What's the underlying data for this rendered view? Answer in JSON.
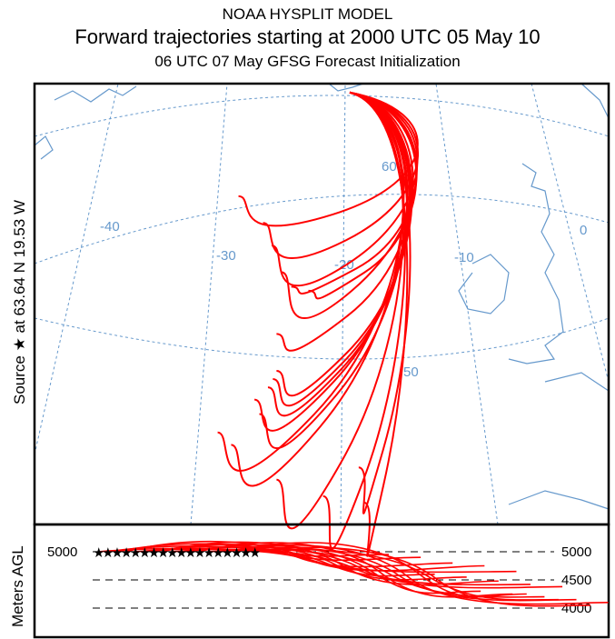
{
  "header": {
    "line1": "NOAA HYSPLIT MODEL",
    "line2": "Forward trajectories starting at 2000 UTC 05 May 10",
    "line3": "06 UTC 07 May    GFSG  Forecast Initialization"
  },
  "source_label": "Source ★ at   63.64 N   19.53 W",
  "vertical_axis_label": "Meters AGL",
  "colors": {
    "trajectory": "#ff0000",
    "graticule": "#6699cc",
    "coast": "#6699cc"
  },
  "chart_data": {
    "type": "line",
    "title": "Forward trajectories starting at 2000 UTC 05 May 10",
    "source": {
      "lat": 63.64,
      "lon": -19.53,
      "height_m": 5000
    },
    "graticule_labels": {
      "lat": [
        "60",
        "50"
      ],
      "lon": [
        "-40",
        "-30",
        "-20",
        "-10",
        "0"
      ]
    },
    "height_ticks_left": [
      "5000"
    ],
    "height_ticks_right": [
      "5000",
      "4500",
      "4000"
    ],
    "height_range_m": [
      3800,
      5500
    ],
    "trajectories": [
      {
        "end_lat": 58.5,
        "end_lon": -28.6,
        "end_height": 4950
      },
      {
        "end_lat": 57.2,
        "end_lon": -26.6,
        "end_height": 4900
      },
      {
        "end_lat": 56.1,
        "end_lon": -25.9,
        "end_height": 4800
      },
      {
        "end_lat": 54.8,
        "end_lon": -25.1,
        "end_height": 4750
      },
      {
        "end_lat": 54.1,
        "end_lon": -24.3,
        "end_height": 4650
      },
      {
        "end_lat": 53.9,
        "end_lon": -22.9,
        "end_height": 4600
      },
      {
        "end_lat": 51.8,
        "end_lon": -25.5,
        "end_height": 4550
      },
      {
        "end_lat": 50.0,
        "end_lon": -25.5,
        "end_height": 4480
      },
      {
        "end_lat": 49.6,
        "end_lon": -25.8,
        "end_height": 4420
      },
      {
        "end_lat": 49.2,
        "end_lon": -26.2,
        "end_height": 4380
      },
      {
        "end_lat": 48.6,
        "end_lon": -27.3,
        "end_height": 4300
      },
      {
        "end_lat": 47.9,
        "end_lon": -26.9,
        "end_height": 4250
      },
      {
        "end_lat": 47.0,
        "end_lon": -30.3,
        "end_height": 4200
      },
      {
        "end_lat": 46.4,
        "end_lon": -29.2,
        "end_height": 4150
      },
      {
        "end_lat": 45.3,
        "end_lon": -18.8,
        "end_height": 4100
      },
      {
        "end_lat": 44.7,
        "end_lon": -25.5,
        "end_height": 4250
      },
      {
        "end_lat": 43.9,
        "end_lon": -21.7,
        "end_height": 4150
      },
      {
        "end_lat": 43.6,
        "end_lon": -18.4,
        "end_height": 4050
      }
    ]
  }
}
